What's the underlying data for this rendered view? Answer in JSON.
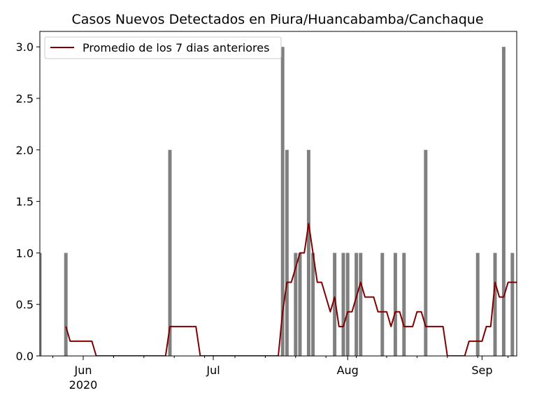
{
  "chart_data": {
    "type": "bar",
    "title": "Casos Nuevos Detectados en Piura/Huancabamba/Canchaque",
    "xlabel": "",
    "ylabel": "",
    "x_start": "2020-05-22",
    "x_end": "2020-09-09",
    "ylim": [
      0,
      3.15
    ],
    "grid": false,
    "legend_position": "top-left",
    "bar_color": "#808080",
    "line_color": "#800000",
    "x_ticks": [
      {
        "date": "2020-06-01",
        "label": "Jun",
        "sublabel": "2020"
      },
      {
        "date": "2020-07-01",
        "label": "Jul",
        "sublabel": ""
      },
      {
        "date": "2020-08-01",
        "label": "Aug",
        "sublabel": ""
      },
      {
        "date": "2020-09-01",
        "label": "Sep",
        "sublabel": ""
      }
    ],
    "y_ticks": [
      {
        "value": 0.0,
        "label": "0.0"
      },
      {
        "value": 0.5,
        "label": "0.5"
      },
      {
        "value": 1.0,
        "label": "1.0"
      },
      {
        "value": 1.5,
        "label": "1.5"
      },
      {
        "value": 2.0,
        "label": "2.0"
      },
      {
        "value": 2.5,
        "label": "2.5"
      },
      {
        "value": 3.0,
        "label": "3.0"
      }
    ],
    "bars": [
      {
        "date": "2020-05-22",
        "value": 1
      },
      {
        "date": "2020-05-28",
        "value": 1
      },
      {
        "date": "2020-06-21",
        "value": 2
      },
      {
        "date": "2020-07-17",
        "value": 3
      },
      {
        "date": "2020-07-18",
        "value": 2
      },
      {
        "date": "2020-07-20",
        "value": 1
      },
      {
        "date": "2020-07-21",
        "value": 1
      },
      {
        "date": "2020-07-23",
        "value": 2
      },
      {
        "date": "2020-07-24",
        "value": 1
      },
      {
        "date": "2020-07-29",
        "value": 1
      },
      {
        "date": "2020-07-31",
        "value": 1
      },
      {
        "date": "2020-08-01",
        "value": 1
      },
      {
        "date": "2020-08-03",
        "value": 1
      },
      {
        "date": "2020-08-04",
        "value": 1
      },
      {
        "date": "2020-08-09",
        "value": 1
      },
      {
        "date": "2020-08-12",
        "value": 1
      },
      {
        "date": "2020-08-14",
        "value": 1
      },
      {
        "date": "2020-08-19",
        "value": 2
      },
      {
        "date": "2020-08-31",
        "value": 1
      },
      {
        "date": "2020-09-04",
        "value": 1
      },
      {
        "date": "2020-09-06",
        "value": 3
      },
      {
        "date": "2020-09-08",
        "value": 1
      },
      {
        "date": "2020-09-10",
        "value": 1
      }
    ],
    "series": [
      {
        "name": "Promedio de los 7 dias anteriores",
        "points": [
          [
            "2020-05-28",
            0.2857
          ],
          [
            "2020-05-29",
            0.1429
          ],
          [
            "2020-06-03",
            0.1429
          ],
          [
            "2020-06-04",
            0.0
          ],
          [
            "2020-06-20",
            0.0
          ],
          [
            "2020-06-21",
            0.2857
          ],
          [
            "2020-06-27",
            0.2857
          ],
          [
            "2020-06-28",
            0.0
          ],
          [
            "2020-07-16",
            0.0
          ],
          [
            "2020-07-17",
            0.4286
          ],
          [
            "2020-07-18",
            0.7143
          ],
          [
            "2020-07-19",
            0.7143
          ],
          [
            "2020-07-21",
            1.0
          ],
          [
            "2020-07-22",
            1.0
          ],
          [
            "2020-07-23",
            1.2857
          ],
          [
            "2020-07-24",
            1.0
          ],
          [
            "2020-07-25",
            0.7143
          ],
          [
            "2020-07-26",
            0.7143
          ],
          [
            "2020-07-28",
            0.4286
          ],
          [
            "2020-07-29",
            0.5714
          ],
          [
            "2020-07-30",
            0.2857
          ],
          [
            "2020-07-31",
            0.2857
          ],
          [
            "2020-08-01",
            0.4286
          ],
          [
            "2020-08-02",
            0.4286
          ],
          [
            "2020-08-04",
            0.7143
          ],
          [
            "2020-08-05",
            0.5714
          ],
          [
            "2020-08-07",
            0.5714
          ],
          [
            "2020-08-08",
            0.4286
          ],
          [
            "2020-08-10",
            0.4286
          ],
          [
            "2020-08-11",
            0.2857
          ],
          [
            "2020-08-12",
            0.4286
          ],
          [
            "2020-08-13",
            0.4286
          ],
          [
            "2020-08-14",
            0.2857
          ],
          [
            "2020-08-16",
            0.2857
          ],
          [
            "2020-08-17",
            0.4286
          ],
          [
            "2020-08-18",
            0.4286
          ],
          [
            "2020-08-19",
            0.2857
          ],
          [
            "2020-08-23",
            0.2857
          ],
          [
            "2020-08-24",
            0.0
          ],
          [
            "2020-08-28",
            0.0
          ],
          [
            "2020-08-29",
            0.1429
          ],
          [
            "2020-09-01",
            0.1429
          ],
          [
            "2020-09-02",
            0.2857
          ],
          [
            "2020-09-03",
            0.2857
          ],
          [
            "2020-09-04",
            0.7143
          ],
          [
            "2020-09-05",
            0.5714
          ],
          [
            "2020-09-06",
            0.5714
          ],
          [
            "2020-09-07",
            0.7143
          ],
          [
            "2020-09-09",
            0.7143
          ]
        ]
      }
    ]
  }
}
